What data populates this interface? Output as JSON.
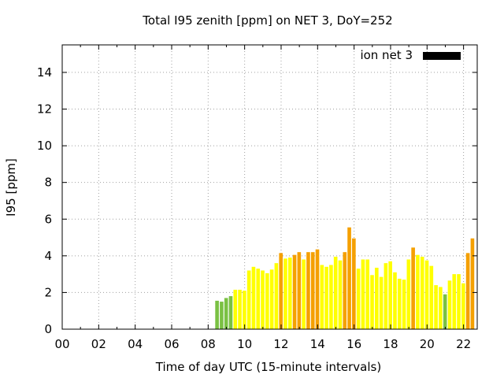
{
  "chart_data": {
    "type": "bar",
    "title": "Total I95 zenith [ppm] on NET 3, DoY=252",
    "xlabel": "Time of day UTC (15-minute intervals)",
    "ylabel": "I95 [ppm]",
    "xlim": [
      0,
      22.75
    ],
    "ylim": [
      0,
      15.5
    ],
    "xticks": [
      0,
      2,
      4,
      6,
      8,
      10,
      12,
      14,
      16,
      18,
      20,
      22
    ],
    "xtick_labels": [
      "00",
      "02",
      "04",
      "06",
      "08",
      "10",
      "12",
      "14",
      "16",
      "18",
      "20",
      "22"
    ],
    "yticks": [
      0,
      2,
      4,
      6,
      8,
      10,
      12,
      14
    ],
    "ytick_labels": [
      "0",
      "2",
      "4",
      "6",
      "8",
      "10",
      "12",
      "14"
    ],
    "grid": true,
    "legend": {
      "label": "ion net 3",
      "color": "#000000",
      "placement": "top-right"
    },
    "level_colors": {
      "green": "#7ac143",
      "yellow": "#ffff00",
      "orange": "#f5a000"
    },
    "series": [
      {
        "name": "ion net 3",
        "x": [
          8.5,
          8.75,
          9.0,
          9.25,
          9.5,
          9.75,
          10.0,
          10.25,
          10.5,
          10.75,
          11.0,
          11.25,
          11.5,
          11.75,
          12.0,
          12.25,
          12.5,
          12.75,
          13.0,
          13.25,
          13.5,
          13.75,
          14.0,
          14.25,
          14.5,
          14.75,
          15.0,
          15.25,
          15.5,
          15.75,
          16.0,
          16.25,
          16.5,
          16.75,
          17.0,
          17.25,
          17.5,
          17.75,
          18.0,
          18.25,
          18.5,
          18.75,
          19.0,
          19.25,
          19.5,
          19.75,
          20.0,
          20.25,
          20.5,
          20.75,
          21.0,
          21.25,
          21.5,
          21.75,
          22.0,
          22.25,
          22.5
        ],
        "values": [
          1.55,
          1.5,
          1.7,
          1.8,
          2.15,
          2.15,
          2.1,
          3.2,
          3.4,
          3.3,
          3.2,
          3.05,
          3.25,
          3.6,
          4.15,
          3.85,
          3.9,
          4.05,
          4.2,
          3.8,
          4.2,
          4.2,
          4.35,
          3.5,
          3.4,
          3.5,
          3.95,
          3.75,
          4.2,
          5.55,
          4.95,
          3.3,
          3.8,
          3.8,
          2.95,
          3.35,
          2.85,
          3.6,
          3.7,
          3.1,
          2.75,
          2.7,
          3.8,
          4.45,
          4.05,
          3.95,
          3.75,
          3.45,
          2.4,
          2.3,
          1.9,
          2.65,
          3.0,
          3.0,
          2.5,
          4.15,
          4.95
        ],
        "levels": [
          "green",
          "green",
          "green",
          "green",
          "yellow",
          "yellow",
          "yellow",
          "yellow",
          "yellow",
          "yellow",
          "yellow",
          "yellow",
          "yellow",
          "yellow",
          "orange",
          "yellow",
          "yellow",
          "orange",
          "orange",
          "yellow",
          "orange",
          "orange",
          "orange",
          "yellow",
          "yellow",
          "yellow",
          "yellow",
          "yellow",
          "orange",
          "orange",
          "orange",
          "yellow",
          "yellow",
          "yellow",
          "yellow",
          "yellow",
          "yellow",
          "yellow",
          "yellow",
          "yellow",
          "yellow",
          "yellow",
          "yellow",
          "orange",
          "yellow",
          "yellow",
          "yellow",
          "yellow",
          "yellow",
          "yellow",
          "green",
          "yellow",
          "yellow",
          "yellow",
          "yellow",
          "orange",
          "orange"
        ]
      }
    ]
  }
}
